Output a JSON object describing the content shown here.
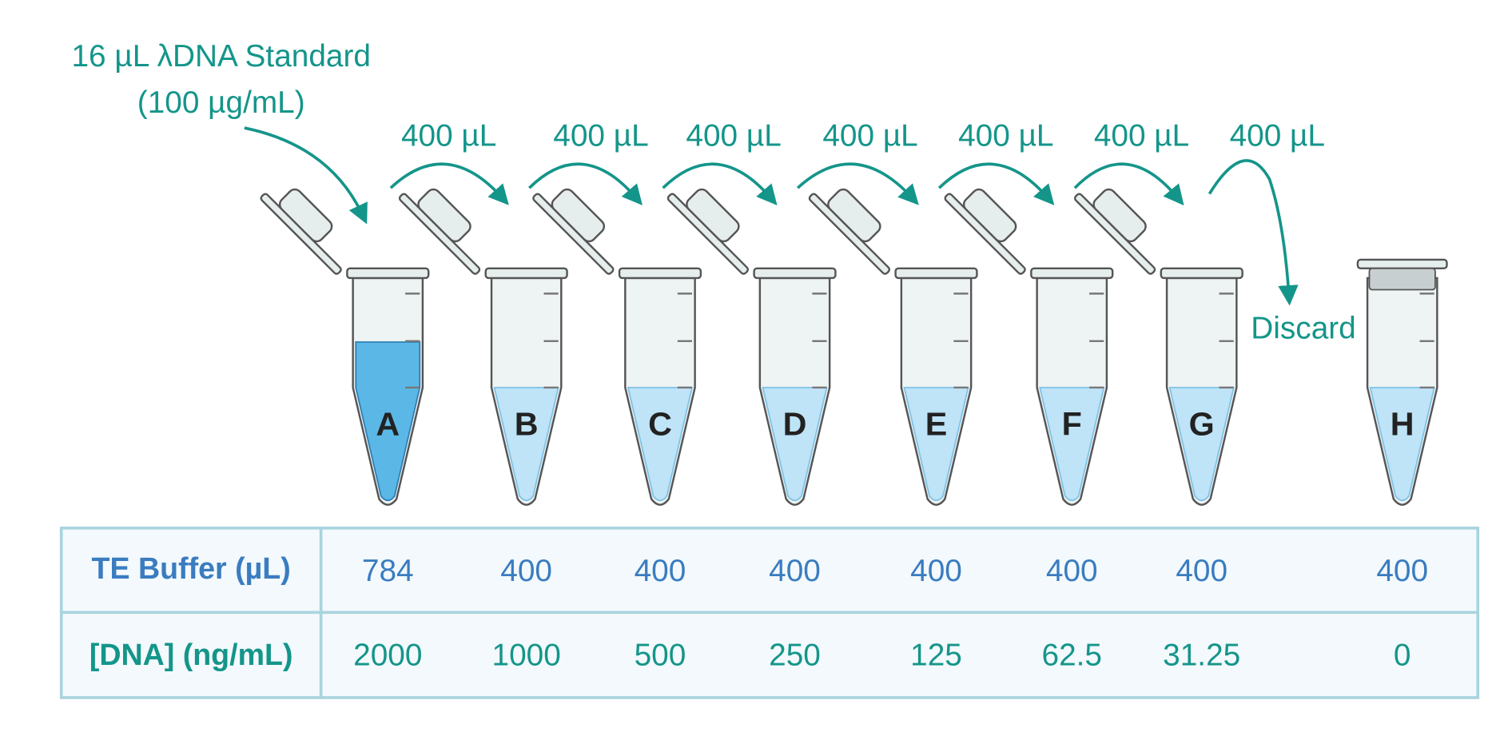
{
  "source": {
    "label": "16 µL λDNA Standard",
    "concentration": "(100 µg/mL)"
  },
  "transfers": [
    "400 µL",
    "400 µL",
    "400 µL",
    "400 µL",
    "400 µL",
    "400 µL",
    "400 µL"
  ],
  "discard": "Discard",
  "tubes": [
    "A",
    "B",
    "C",
    "D",
    "E",
    "F",
    "G",
    "H"
  ],
  "table": {
    "rows": [
      {
        "header": "TE Buffer (µL)",
        "cells": [
          784,
          400,
          400,
          400,
          400,
          400,
          400,
          400
        ]
      },
      {
        "header": "[DNA] (ng/mL)",
        "cells": [
          2000,
          1000,
          500,
          250,
          125,
          62.5,
          31.25,
          0
        ]
      }
    ]
  }
}
